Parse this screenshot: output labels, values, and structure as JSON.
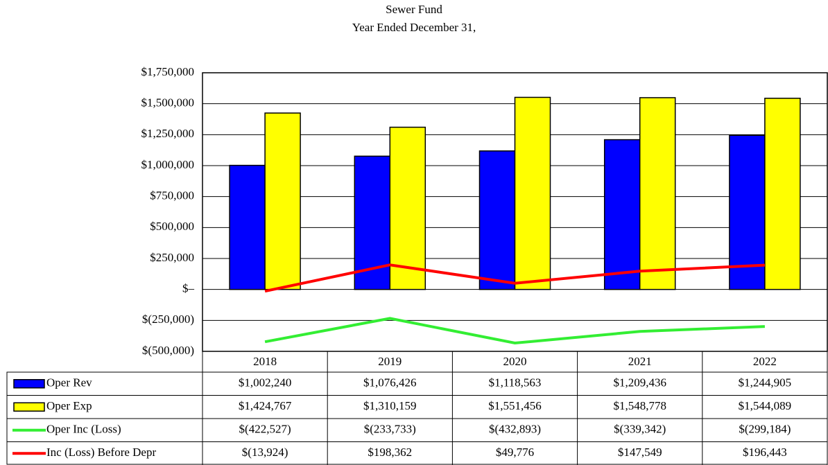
{
  "chart_data": {
    "type": "bar",
    "title": "Sewer Fund",
    "subtitle": "Year Ended December 31,",
    "categories": [
      "2018",
      "2019",
      "2020",
      "2021",
      "2022"
    ],
    "series": [
      {
        "name": "Oper Rev",
        "type": "bar",
        "color": "#0000ff",
        "values": [
          1002240,
          1076426,
          1118563,
          1209436,
          1244905
        ],
        "value_labels": [
          "$1,002,240",
          "$1,076,426",
          "$1,118,563",
          "$1,209,436",
          "$1,244,905"
        ]
      },
      {
        "name": "Oper Exp",
        "type": "bar",
        "color": "#ffff00",
        "values": [
          1424767,
          1310159,
          1551456,
          1548778,
          1544089
        ],
        "value_labels": [
          "$1,424,767",
          "$1,310,159",
          "$1,551,456",
          "$1,548,778",
          "$1,544,089"
        ]
      },
      {
        "name": "Oper Inc (Loss)",
        "type": "line",
        "color": "#33ee33",
        "values": [
          -422527,
          -233733,
          -432893,
          -339342,
          -299184
        ],
        "value_labels": [
          "$(422,527)",
          "$(233,733)",
          "$(432,893)",
          "$(339,342)",
          "$(299,184)"
        ]
      },
      {
        "name": "Inc (Loss) Before Depr",
        "type": "line",
        "color": "#ff0000",
        "values": [
          -13924,
          198362,
          49776,
          147549,
          196443
        ],
        "value_labels": [
          "$(13,924)",
          "$198,362",
          "$49,776",
          "$147,549",
          "$196,443"
        ]
      }
    ],
    "ylim": [
      -500000,
      1750000
    ],
    "yticks": [
      {
        "value": -500000,
        "label": "$(500,000)"
      },
      {
        "value": -250000,
        "label": "$(250,000)"
      },
      {
        "value": 0,
        "label": "$–"
      },
      {
        "value": 250000,
        "label": "$250,000"
      },
      {
        "value": 500000,
        "label": "$500,000"
      },
      {
        "value": 750000,
        "label": "$750,000"
      },
      {
        "value": 1000000,
        "label": "$1,000,000"
      },
      {
        "value": 1250000,
        "label": "$1,250,000"
      },
      {
        "value": 1500000,
        "label": "$1,500,000"
      },
      {
        "value": 1750000,
        "label": "$1,750,000"
      }
    ],
    "grid": true
  }
}
